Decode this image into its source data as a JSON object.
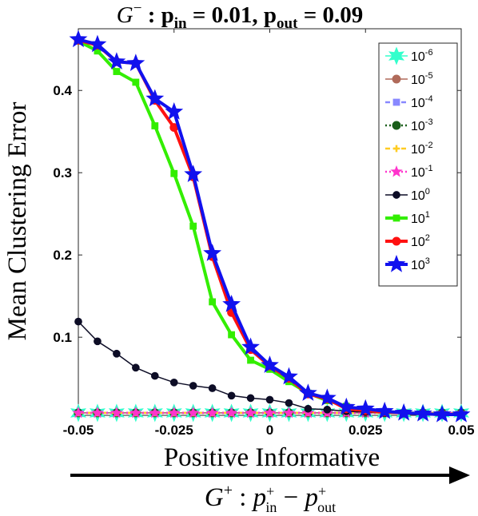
{
  "chart_data": {
    "type": "line",
    "title_parts": {
      "g": "G",
      "g_sup": "−",
      "colon": " : ",
      "p_in": "p",
      "p_in_sub": "in",
      "eq1": " = 0.01,  ",
      "p_out": "p",
      "p_out_sub": "out",
      "eq2": " = 0.09"
    },
    "xlabel": "Positive Informative",
    "ylabel": "Mean Clustering Error",
    "bottom_label_parts": {
      "g": "G",
      "g_sup": "+",
      "colon": " : ",
      "p1": "p",
      "p1_sup": "+",
      "p1_sub": "in",
      "minus": " − ",
      "p2": "p",
      "p2_sup": "+",
      "p2_sub": "out"
    },
    "xlim": [
      -0.05,
      0.05
    ],
    "ylim": [
      0.005,
      0.475
    ],
    "xticks": [
      -0.05,
      -0.025,
      0,
      0.025,
      0.05
    ],
    "xtick_labels": [
      "-0.05",
      "-0.025",
      "0",
      "0.025",
      "0.05"
    ],
    "yticks": [
      0.1,
      0.2,
      0.3,
      0.4
    ],
    "ytick_labels": [
      "0.1",
      "0.2",
      "0.3",
      "0.4"
    ],
    "grid": false,
    "legend_position": "top-right",
    "x": [
      -0.05,
      -0.045,
      -0.04,
      -0.035,
      -0.03,
      -0.025,
      -0.02,
      -0.015,
      -0.01,
      -0.005,
      0,
      0.005,
      0.01,
      0.015,
      0.02,
      0.025,
      0.03,
      0.035,
      0.04,
      0.045,
      0.05
    ],
    "series": [
      {
        "name_base": "10",
        "name_exp": "-6",
        "color": "#33ffcc",
        "marker": "hexstar",
        "line": "solid",
        "values": [
          0.008,
          0.008,
          0.008,
          0.008,
          0.008,
          0.008,
          0.008,
          0.008,
          0.008,
          0.008,
          0.008,
          0.008,
          0.008,
          0.008,
          0.008,
          0.008,
          0.008,
          0.008,
          0.008,
          0.008,
          0.008
        ]
      },
      {
        "name_base": "10",
        "name_exp": "-5",
        "color": "#b06a5a",
        "marker": "circle",
        "line": "solid",
        "values": [
          0.008,
          0.008,
          0.008,
          0.008,
          0.008,
          0.008,
          0.008,
          0.008,
          0.008,
          0.008,
          0.008,
          0.008,
          0.008,
          0.008,
          0.008,
          0.008,
          0.008,
          0.008,
          0.008,
          0.008,
          0.008
        ]
      },
      {
        "name_base": "10",
        "name_exp": "-4",
        "color": "#8888ff",
        "marker": "square",
        "line": "dashed",
        "values": [
          0.008,
          0.008,
          0.008,
          0.008,
          0.008,
          0.008,
          0.008,
          0.008,
          0.008,
          0.008,
          0.008,
          0.008,
          0.008,
          0.008,
          0.008,
          0.008,
          0.008,
          0.008,
          0.008,
          0.008,
          0.008
        ]
      },
      {
        "name_base": "10",
        "name_exp": "-3",
        "color": "#1a5e1a",
        "marker": "circle",
        "line": "dotted",
        "values": [
          0.008,
          0.008,
          0.008,
          0.008,
          0.008,
          0.008,
          0.008,
          0.008,
          0.008,
          0.008,
          0.008,
          0.008,
          0.008,
          0.008,
          0.008,
          0.008,
          0.008,
          0.008,
          0.008,
          0.008,
          0.008
        ]
      },
      {
        "name_base": "10",
        "name_exp": "-2",
        "color": "#ffcc22",
        "marker": "plus",
        "line": "dashed",
        "values": [
          0.008,
          0.008,
          0.008,
          0.008,
          0.008,
          0.008,
          0.008,
          0.008,
          0.008,
          0.008,
          0.008,
          0.008,
          0.008,
          0.008,
          0.008,
          0.008,
          0.008,
          0.008,
          0.008,
          0.008,
          0.008
        ]
      },
      {
        "name_base": "10",
        "name_exp": "-1",
        "color": "#ff33cc",
        "marker": "star",
        "line": "dotted",
        "values": [
          0.008,
          0.008,
          0.008,
          0.008,
          0.008,
          0.008,
          0.008,
          0.008,
          0.008,
          0.008,
          0.008,
          0.008,
          0.008,
          0.008,
          0.008,
          0.008,
          0.008,
          0.008,
          0.008,
          0.008,
          0.008
        ]
      },
      {
        "name_base": "10",
        "name_exp": "0",
        "color": "#0d0d26",
        "marker": "circle",
        "line": "solid",
        "values": [
          0.119,
          0.095,
          0.08,
          0.063,
          0.053,
          0.045,
          0.041,
          0.038,
          0.029,
          0.026,
          0.024,
          0.02,
          0.013,
          0.012,
          0.01,
          0.009,
          0.008,
          0.007,
          0.007,
          0.006,
          0.006
        ]
      },
      {
        "name_base": "10",
        "name_exp": "1",
        "color": "#33ee00",
        "marker": "square",
        "line": "solid",
        "values": [
          0.46,
          0.448,
          0.423,
          0.41,
          0.357,
          0.299,
          0.235,
          0.143,
          0.103,
          0.072,
          0.061,
          0.046,
          0.032,
          0.023,
          0.016,
          0.011,
          0.009,
          0.008,
          0.007,
          0.006,
          0.006
        ]
      },
      {
        "name_base": "10",
        "name_exp": "2",
        "color": "#ff1111",
        "marker": "circle",
        "line": "solid",
        "values": [
          0.461,
          0.455,
          0.435,
          0.433,
          0.388,
          0.355,
          0.295,
          0.198,
          0.13,
          0.085,
          0.065,
          0.05,
          0.031,
          0.025,
          0.013,
          0.011,
          0.009,
          0.008,
          0.007,
          0.006,
          0.006
        ]
      },
      {
        "name_base": "10",
        "name_exp": "3",
        "color": "#1111ee",
        "marker": "star",
        "line": "solid",
        "values": [
          0.462,
          0.456,
          0.435,
          0.433,
          0.39,
          0.374,
          0.298,
          0.202,
          0.14,
          0.088,
          0.066,
          0.052,
          0.032,
          0.026,
          0.015,
          0.013,
          0.01,
          0.008,
          0.007,
          0.006,
          0.006
        ]
      }
    ]
  }
}
